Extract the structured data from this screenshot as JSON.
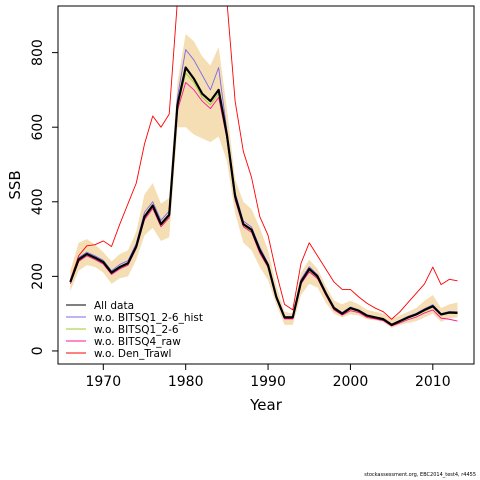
{
  "chart_data": {
    "type": "line",
    "title": "",
    "xlabel": "Year",
    "ylabel": "SSB",
    "xlim": [
      1964.5,
      2015
    ],
    "ylim": [
      -35,
      925
    ],
    "xticks": [
      1970,
      1980,
      1990,
      2000,
      2010
    ],
    "yticks": [
      0,
      200,
      400,
      600,
      800
    ],
    "grid": false,
    "legend_position": "bottom-left",
    "x": [
      1966,
      1967,
      1968,
      1969,
      1970,
      1971,
      1972,
      1973,
      1974,
      1975,
      1976,
      1977,
      1978,
      1979,
      1980,
      1981,
      1982,
      1983,
      1984,
      1985,
      1986,
      1987,
      1988,
      1989,
      1990,
      1991,
      1992,
      1993,
      1994,
      1995,
      1996,
      1997,
      1998,
      1999,
      2000,
      2001,
      2002,
      2003,
      2004,
      2005,
      2006,
      2007,
      2008,
      2009,
      2010,
      2011,
      2012,
      2013
    ],
    "band": {
      "color": "#f5deb3",
      "upper": [
        215,
        290,
        300,
        285,
        265,
        240,
        260,
        270,
        320,
        420,
        450,
        395,
        410,
        720,
        850,
        830,
        790,
        765,
        815,
        650,
        460,
        400,
        380,
        330,
        270,
        175,
        105,
        100,
        210,
        245,
        220,
        175,
        135,
        125,
        135,
        125,
        110,
        105,
        100,
        85,
        95,
        105,
        115,
        135,
        150,
        115,
        125,
        130
      ],
      "lower": [
        160,
        215,
        230,
        225,
        210,
        180,
        195,
        200,
        245,
        310,
        330,
        295,
        305,
        600,
        600,
        580,
        570,
        560,
        575,
        510,
        370,
        290,
        270,
        225,
        190,
        125,
        70,
        70,
        150,
        180,
        170,
        130,
        100,
        90,
        98,
        95,
        85,
        82,
        78,
        62,
        70,
        75,
        80,
        90,
        100,
        78,
        88,
        90
      ]
    },
    "series": [
      {
        "name": "All data",
        "color": "#000000",
        "width": 2.2,
        "values": [
          185,
          245,
          260,
          250,
          238,
          210,
          225,
          235,
          280,
          360,
          390,
          340,
          365,
          660,
          760,
          730,
          690,
          670,
          700,
          580,
          415,
          340,
          325,
          270,
          230,
          145,
          90,
          90,
          185,
          220,
          200,
          155,
          115,
          100,
          115,
          108,
          95,
          90,
          85,
          70,
          80,
          90,
          98,
          110,
          120,
          98,
          103,
          102
        ]
      },
      {
        "name": "w.o. BITSQ1_2-6_hist",
        "color": "#7b68ee",
        "width": 0.9,
        "values": [
          190,
          250,
          265,
          255,
          243,
          215,
          232,
          242,
          288,
          372,
          400,
          350,
          375,
          680,
          808,
          780,
          740,
          700,
          760,
          590,
          425,
          348,
          332,
          278,
          235,
          148,
          92,
          92,
          192,
          226,
          204,
          158,
          118,
          103,
          118,
          110,
          97,
          92,
          87,
          72,
          82,
          93,
          101,
          113,
          124,
          100,
          106,
          105
        ]
      },
      {
        "name": "w.o. BITSQ1_2-6",
        "color": "#9acd32",
        "width": 0.9,
        "values": [
          183,
          242,
          257,
          247,
          235,
          207,
          222,
          232,
          277,
          355,
          385,
          335,
          360,
          650,
          745,
          720,
          680,
          660,
          690,
          572,
          410,
          336,
          321,
          266,
          227,
          143,
          89,
          89,
          182,
          216,
          197,
          153,
          113,
          99,
          112,
          106,
          93,
          88,
          83,
          69,
          78,
          88,
          96,
          107,
          117,
          96,
          101,
          100
        ]
      },
      {
        "name": "w.o. BITSQ4_raw",
        "color": "#ff1493",
        "width": 0.9,
        "values": [
          180,
          240,
          255,
          245,
          233,
          205,
          220,
          230,
          275,
          352,
          382,
          333,
          357,
          645,
          720,
          700,
          670,
          650,
          680,
          570,
          405,
          333,
          318,
          262,
          224,
          140,
          86,
          86,
          180,
          212,
          194,
          150,
          110,
          96,
          108,
          103,
          90,
          86,
          81,
          67,
          75,
          84,
          91,
          102,
          110,
          88,
          85,
          80
        ]
      },
      {
        "name": "w.o. Den_Trawl",
        "color": "#ff0000",
        "width": 0.9,
        "values": [
          190,
          255,
          282,
          285,
          295,
          280,
          340,
          395,
          450,
          555,
          630,
          600,
          635,
          940,
          1000,
          1000,
          1000,
          1000,
          1000,
          940,
          670,
          535,
          465,
          360,
          310,
          210,
          125,
          110,
          235,
          290,
          255,
          220,
          185,
          165,
          165,
          145,
          128,
          115,
          105,
          85,
          105,
          130,
          155,
          180,
          225,
          178,
          192,
          188
        ]
      }
    ]
  },
  "footer": "stockassessment.org, EBC2014_test4, r4455"
}
